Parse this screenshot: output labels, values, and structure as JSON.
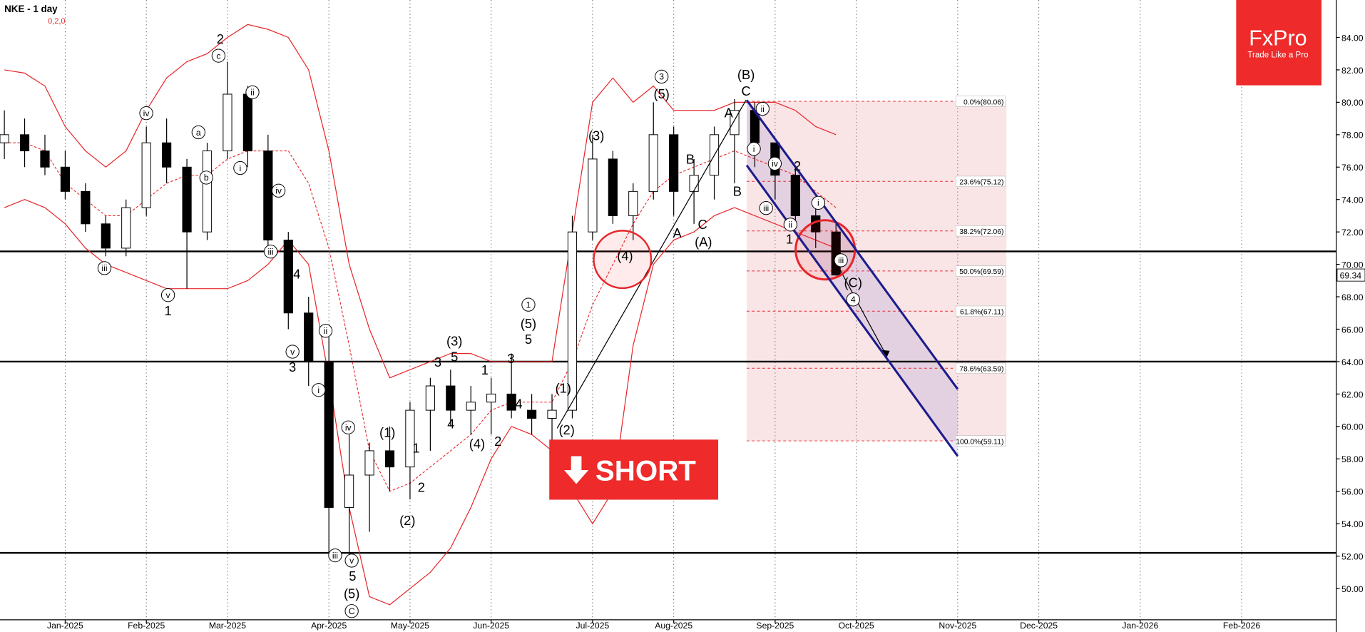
{
  "chart_data": {
    "type": "candlestick",
    "title": "NKE - 1 day",
    "subtitle": "0,2,0",
    "categories": [
      null,
      null,
      null,
      "Jan-2025",
      null,
      null,
      null,
      "Feb-2025",
      null,
      null,
      null,
      "Mar-2025",
      null,
      null,
      null,
      null,
      "Apr-2025",
      null,
      null,
      null,
      "May-2025",
      null,
      null,
      null,
      "Jun-2025",
      null,
      null,
      null,
      null,
      "Jul-2025",
      null,
      null,
      null,
      "Aug-2025",
      null,
      null,
      null,
      null,
      "Sep-2025",
      null,
      null,
      null,
      "Oct-2025",
      null,
      null,
      null,
      null,
      "Nov-2025",
      null,
      null,
      null,
      "Dec-2025",
      null,
      null,
      null,
      null,
      "Jan-2026",
      null,
      null,
      null,
      null,
      "Feb-2026",
      null,
      null,
      null,
      null
    ],
    "open": [
      77.5,
      78,
      77,
      76,
      74.5,
      72.5,
      71,
      73.5,
      77.5,
      76,
      72,
      77,
      80.5,
      77,
      71.5,
      67,
      64,
      55,
      57,
      58.5,
      57.5,
      61,
      62.5,
      61,
      61.5,
      62,
      61,
      60.5,
      61,
      72,
      76.5,
      73,
      74.5,
      78,
      74.5,
      75.5,
      78,
      79.5,
      77.5,
      75.5,
      73,
      72,
      null,
      null,
      null,
      null,
      null,
      null,
      null,
      null,
      null,
      null,
      null,
      null,
      null,
      null,
      null,
      null,
      null,
      null,
      null,
      null,
      null,
      null,
      null,
      null
    ],
    "high": [
      79.5,
      79,
      78,
      77,
      75,
      73,
      74,
      78.5,
      79,
      76.5,
      77.5,
      82.5,
      81,
      78,
      72,
      68,
      65.5,
      59.5,
      59,
      60,
      61.5,
      63,
      63.5,
      62.5,
      63,
      64.5,
      62,
      62,
      73,
      78,
      77,
      75,
      80,
      78.5,
      76.5,
      78.5,
      80.2,
      80,
      77.5,
      76,
      74,
      72.5,
      null,
      null,
      null,
      null,
      null,
      null,
      null,
      null,
      null,
      null,
      null,
      null,
      null,
      null,
      null,
      null,
      null,
      null,
      null,
      null,
      null,
      null,
      null,
      null
    ],
    "low": [
      76.5,
      76,
      75.5,
      74,
      72,
      70.5,
      70.5,
      73,
      75,
      68.5,
      71.5,
      76.5,
      76,
      70.5,
      66,
      62.5,
      52,
      52,
      53.5,
      56,
      55.5,
      58.5,
      60,
      59.5,
      59.5,
      60.5,
      59.5,
      59,
      60.5,
      71.5,
      72.5,
      71.5,
      74,
      73,
      72.5,
      74,
      75,
      76,
      74,
      72.5,
      71,
      69.3,
      null,
      null,
      null,
      null,
      null,
      null,
      null,
      null,
      null,
      null,
      null,
      null,
      null,
      null,
      null,
      null,
      null,
      null,
      null,
      null,
      null,
      null,
      null,
      null
    ],
    "close": [
      78,
      77,
      76,
      74.5,
      72.5,
      71,
      73.5,
      77.5,
      76,
      72,
      77,
      80.5,
      77,
      71.5,
      67,
      64,
      55,
      57,
      58.5,
      57.5,
      61,
      62.5,
      61,
      61.5,
      62,
      61,
      60.5,
      61,
      72,
      76.5,
      73,
      74.5,
      78,
      74.5,
      75.5,
      78,
      79.5,
      77.5,
      75.5,
      73,
      72,
      69.34,
      null,
      null,
      null,
      null,
      null,
      null,
      null,
      null,
      null,
      null,
      null,
      null,
      null,
      null,
      null,
      null,
      null,
      null,
      null,
      null,
      null,
      null,
      null,
      null
    ],
    "upper": [
      82,
      81.8,
      81,
      78.5,
      77,
      76,
      77,
      79.5,
      81.5,
      82.5,
      83,
      84,
      84.8,
      84.5,
      84,
      82,
      77,
      70,
      66,
      63,
      63.5,
      64,
      64.5,
      64.5,
      64,
      64,
      64,
      64,
      72,
      80,
      81.5,
      80,
      81,
      79.5,
      79.5,
      79.5,
      80,
      80,
      80,
      79.5,
      78.5,
      78,
      null,
      null,
      null,
      null,
      null,
      null,
      null,
      null,
      null,
      null,
      null,
      null,
      null,
      null,
      null,
      null,
      null,
      null,
      null,
      null,
      null,
      null,
      null,
      null
    ],
    "middle": [
      77.5,
      77.5,
      77,
      75,
      74,
      73,
      73,
      74,
      75,
      75.5,
      75.5,
      76.5,
      77,
      77,
      77,
      75,
      71,
      65,
      58.5,
      56,
      56.5,
      57.5,
      58.5,
      59.5,
      61,
      61.5,
      61.5,
      61.5,
      64,
      67.5,
      70,
      72.5,
      74.5,
      75.5,
      76,
      76.5,
      77,
      76.5,
      76,
      75.5,
      74.5,
      73.5,
      null,
      null,
      null,
      null,
      null,
      null,
      null,
      null,
      null,
      null,
      null,
      null,
      null,
      null,
      null,
      null,
      null,
      null,
      null,
      null,
      null,
      null,
      null,
      null
    ],
    "lower": [
      73.5,
      74,
      73.5,
      72.5,
      71,
      70,
      69.5,
      69,
      68.5,
      68.5,
      68.5,
      68.5,
      69,
      70,
      71.5,
      70,
      63,
      55,
      49.5,
      49,
      50,
      51,
      52.5,
      55,
      58,
      60,
      59.5,
      58.5,
      56,
      54,
      56,
      65,
      70,
      71.5,
      72,
      73,
      73.5,
      73,
      72.5,
      72,
      71.5,
      71,
      null,
      null,
      null,
      null,
      null,
      null,
      null,
      null,
      null,
      null,
      null,
      null,
      null,
      null,
      null,
      null,
      null,
      null,
      null,
      null,
      null,
      null,
      null,
      null
    ],
    "ylim": [
      48.07,
      86.31
    ],
    "yticks": [
      {
        "value": 50,
        "label": "50.00"
      },
      {
        "value": 52,
        "label": "52.00"
      },
      {
        "value": 54,
        "label": "54.00"
      },
      {
        "value": 56,
        "label": "56.00"
      },
      {
        "value": 58,
        "label": "58.00"
      },
      {
        "value": 60,
        "label": "60.00"
      },
      {
        "value": 62,
        "label": "62.00"
      },
      {
        "value": 64,
        "label": "64.00"
      },
      {
        "value": 66,
        "label": "66.00"
      },
      {
        "value": 68,
        "label": "68.00"
      },
      {
        "value": 70,
        "label": "70.00"
      },
      {
        "value": 72,
        "label": "72.00"
      },
      {
        "value": 74,
        "label": "74.00"
      },
      {
        "value": 76,
        "label": "76.00"
      },
      {
        "value": 78,
        "label": "78.00"
      },
      {
        "value": 80,
        "label": "80.00"
      },
      {
        "value": 82,
        "label": "82.00"
      },
      {
        "value": 84,
        "label": "84.00"
      }
    ],
    "levels": [
      70.8,
      64.0,
      52.2
    ],
    "fib": [
      {
        "value": 80.06,
        "label": "0.0%(80.06)"
      },
      {
        "value": 75.12,
        "label": "23.6%(75.12)"
      },
      {
        "value": 72.06,
        "label": "38.2%(72.06)"
      },
      {
        "value": 69.59,
        "label": "50.0%(69.59)"
      },
      {
        "value": 67.11,
        "label": "61.8%(67.11)"
      },
      {
        "value": 63.59,
        "label": "78.6%(63.59)"
      },
      {
        "value": 59.11,
        "label": "100.0%(59.11)"
      }
    ],
    "fib_x": [
      36.6,
      49.4
    ],
    "channel_x": [
      36.6,
      47
    ],
    "channel_upper": [
      80.13,
      62.3
    ],
    "channel_lower": [
      76.11,
      58.17
    ],
    "wave_labels": [
      "2",
      "c",
      "ii",
      "iv",
      "a",
      "b",
      "i",
      "iv",
      "iii",
      "iii",
      "v",
      "1",
      "4",
      "v",
      "3",
      "ii",
      "i",
      "iv",
      "iii",
      "v",
      "5",
      "(5)",
      "C",
      "(1)",
      "1",
      "2",
      "(2)",
      "3",
      "(3)",
      "5",
      "4",
      "(4)",
      "1",
      "2",
      "3",
      "4",
      "1",
      "(5)",
      "5",
      "(1)",
      "(2)",
      "(3)",
      "3",
      "(5)",
      "(4)",
      "A",
      "B",
      "C",
      "(A)",
      "B",
      "A",
      "(B)",
      "C",
      "ii",
      "i",
      "iv",
      "2",
      "iii",
      "i",
      "ii",
      "1",
      "iii",
      "(C)",
      "4"
    ]
  },
  "logo": {
    "name": "FxPro",
    "tagline": "Trade Like a Pro"
  },
  "signal": "SHORT"
}
